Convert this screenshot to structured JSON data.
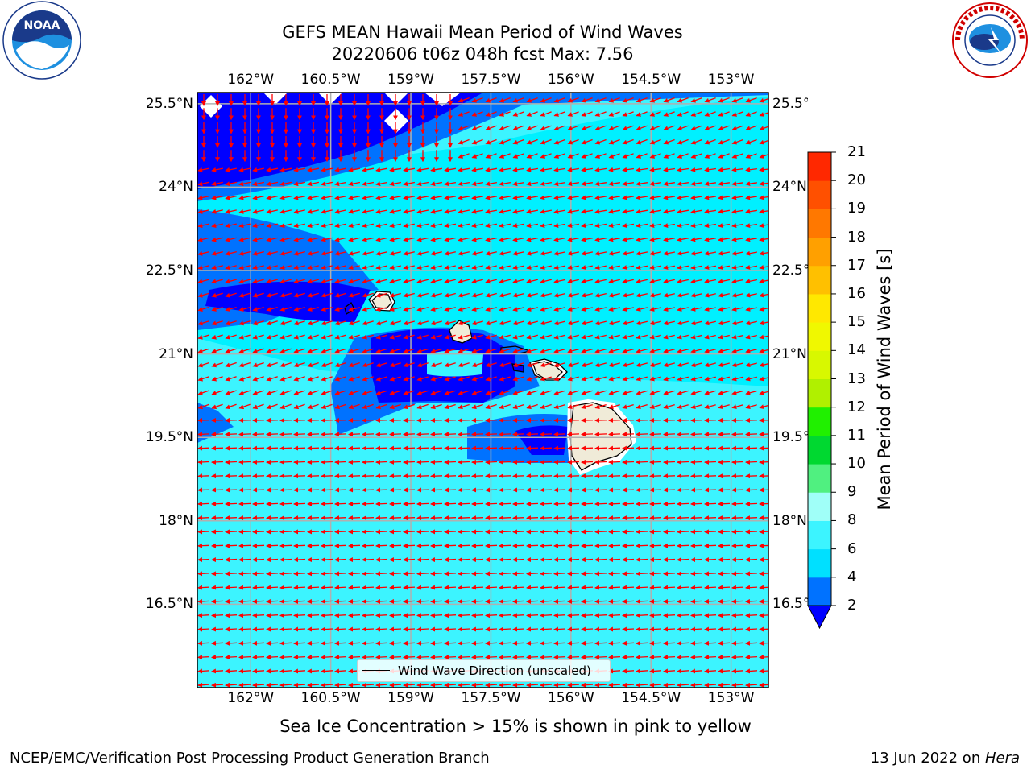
{
  "header": {
    "title_line1": "GEFS MEAN Hawaii Mean Period of Wind Waves",
    "title_line2": "20220606 t06z 048h fcst   Max: 7.56"
  },
  "logos": {
    "left": {
      "name": "NOAA",
      "ring_text": "NATIONAL OCEANIC AND ATMOSPHERIC ADMINISTRATION",
      "bottom_text": "U.S. DEPARTMENT OF COMMERCE"
    },
    "right": {
      "name": "NATIONAL WEATHER SERVICE"
    }
  },
  "map": {
    "lon_ticks": [
      "162°W",
      "160.5°W",
      "159°W",
      "157.5°W",
      "156°W",
      "154.5°W",
      "153°W"
    ],
    "lat_ticks": [
      "25.5°N",
      "24°N",
      "22.5°N",
      "21°N",
      "19.5°N",
      "18°N",
      "16.5°N"
    ],
    "lon_values": [
      -162,
      -160.5,
      -159,
      -157.5,
      -156,
      -154.5,
      -153
    ],
    "lat_values": [
      25.5,
      24,
      22.5,
      21,
      19.5,
      18,
      16.5
    ],
    "lon_range": [
      -163,
      -152.3
    ],
    "lat_range": [
      15,
      25.7
    ],
    "legend_label": "Wind Wave Direction (unscaled)",
    "arrow_color": "#ff0000",
    "land_color": "#f0ebd8",
    "grid": true
  },
  "colorbar": {
    "label": "Mean Period of Wind Waves [s]",
    "ticks": [
      "2",
      "4",
      "6",
      "8",
      "9",
      "10",
      "11",
      "12",
      "13",
      "14",
      "15",
      "16",
      "17",
      "18",
      "19",
      "20",
      "21"
    ],
    "levels": [
      2,
      4,
      6,
      8,
      9,
      10,
      11,
      12,
      13,
      14,
      15,
      16,
      17,
      18,
      19,
      20,
      21
    ],
    "colors": [
      "#0072ff",
      "#00e0ff",
      "#3cf4ff",
      "#a0fff8",
      "#50f080",
      "#00d830",
      "#20f000",
      "#b0f000",
      "#d8f800",
      "#f0f800",
      "#ffe800",
      "#ffc000",
      "#ffa000",
      "#ff7800",
      "#ff5000",
      "#ff2800",
      "#ff0000"
    ],
    "under_color": "#0000ff"
  },
  "footer": {
    "sea_ice_note": "Sea Ice Concentration > 15% is shown in pink to yellow",
    "credit": "NCEP/EMC/Verification Post Processing Product Generation Branch",
    "date_prefix": "13 Jun 2022 on ",
    "host": "Hera"
  }
}
